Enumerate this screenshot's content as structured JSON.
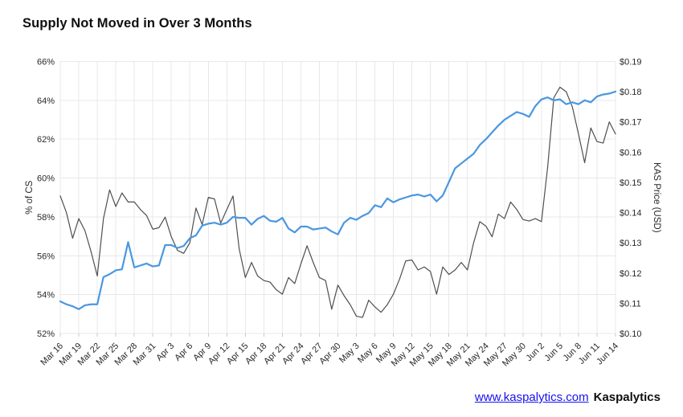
{
  "page": {
    "background": "#ffffff"
  },
  "header": {
    "title": "Supply Not Moved in Over 3 Months"
  },
  "footer": {
    "link_text": "www.kaspalytics.com",
    "brand": "Kaspalytics"
  },
  "colors": {
    "supply_line": "#4a97e0",
    "price_line": "#4f4f52",
    "grid": "#e8e8ec",
    "tick_stub": "#c8c8cc",
    "axis_text": "#26282b",
    "title_text": "#0e0f11",
    "link_blue": "#1512ee",
    "background": "#ffffff"
  },
  "chart_data": {
    "type": "line",
    "title": "Supply Not Moved in Over 3 Months",
    "legend": "none",
    "grid": true,
    "x": {
      "tick_every_days": 3,
      "tick_labels": [
        "Mar 16",
        "Mar 19",
        "Mar 22",
        "Mar 25",
        "Mar 28",
        "Mar 31",
        "Apr 3",
        "Apr 6",
        "Apr 9",
        "Apr 12",
        "Apr 15",
        "Apr 18",
        "Apr 21",
        "Apr 24",
        "Apr 27",
        "Apr 30",
        "May 3",
        "May 6",
        "May 9",
        "May 12",
        "May 15",
        "May 18",
        "May 21",
        "May 24",
        "May 27",
        "May 30",
        "Jun 2",
        "Jun 5",
        "Jun 8",
        "Jun 11",
        "Jun 14"
      ],
      "dates": [
        "Mar 16",
        "Mar 17",
        "Mar 18",
        "Mar 19",
        "Mar 20",
        "Mar 21",
        "Mar 22",
        "Mar 23",
        "Mar 24",
        "Mar 25",
        "Mar 26",
        "Mar 27",
        "Mar 28",
        "Mar 29",
        "Mar 30",
        "Mar 31",
        "Apr 1",
        "Apr 2",
        "Apr 3",
        "Apr 4",
        "Apr 5",
        "Apr 6",
        "Apr 7",
        "Apr 8",
        "Apr 9",
        "Apr 10",
        "Apr 11",
        "Apr 12",
        "Apr 13",
        "Apr 14",
        "Apr 15",
        "Apr 16",
        "Apr 17",
        "Apr 18",
        "Apr 19",
        "Apr 20",
        "Apr 21",
        "Apr 22",
        "Apr 23",
        "Apr 24",
        "Apr 25",
        "Apr 26",
        "Apr 27",
        "Apr 28",
        "Apr 29",
        "Apr 30",
        "May 1",
        "May 2",
        "May 3",
        "May 4",
        "May 5",
        "May 6",
        "May 7",
        "May 8",
        "May 9",
        "May 10",
        "May 11",
        "May 12",
        "May 13",
        "May 14",
        "May 15",
        "May 16",
        "May 17",
        "May 18",
        "May 19",
        "May 20",
        "May 21",
        "May 22",
        "May 23",
        "May 24",
        "May 25",
        "May 26",
        "May 27",
        "May 28",
        "May 29",
        "May 30",
        "May 31",
        "Jun 1",
        "Jun 2",
        "Jun 3",
        "Jun 4",
        "Jun 5",
        "Jun 6",
        "Jun 7",
        "Jun 8",
        "Jun 9",
        "Jun 10",
        "Jun 11",
        "Jun 12",
        "Jun 13",
        "Jun 14"
      ]
    },
    "left_axis": {
      "label": "% of CS",
      "unit": "%",
      "range": [
        52,
        66
      ],
      "tick_step": 2,
      "tick_labels": [
        "66%",
        "64%",
        "62%",
        "60%",
        "58%",
        "56%",
        "54%",
        "52%"
      ]
    },
    "right_axis": {
      "label": "KAS Price (USD)",
      "unit": "USD",
      "range": [
        0.1,
        0.19
      ],
      "tick_step": 0.01,
      "tick_labels": [
        "$0.19",
        "$0.18",
        "$0.17",
        "$0.16",
        "$0.15",
        "$0.14",
        "$0.13",
        "$0.12",
        "$0.11",
        "$0.10"
      ]
    },
    "series": [
      {
        "name": "Supply Not Moved in Over 3 Months (% of CS)",
        "axis": "left",
        "color": "#4a97e0",
        "stroke_width": 2.2,
        "values": [
          53.65,
          53.5,
          53.4,
          53.25,
          53.45,
          53.5,
          53.5,
          54.9,
          55.05,
          55.25,
          55.3,
          56.7,
          55.4,
          55.5,
          55.6,
          55.45,
          55.5,
          56.55,
          56.55,
          56.4,
          56.5,
          56.9,
          57.05,
          57.55,
          57.65,
          57.7,
          57.6,
          57.7,
          58.0,
          57.95,
          57.95,
          57.6,
          57.9,
          58.05,
          57.8,
          57.75,
          57.95,
          57.4,
          57.2,
          57.5,
          57.5,
          57.35,
          57.4,
          57.45,
          57.25,
          57.1,
          57.7,
          57.95,
          57.85,
          58.05,
          58.2,
          58.6,
          58.5,
          58.95,
          58.75,
          58.9,
          59.0,
          59.1,
          59.15,
          59.05,
          59.15,
          58.8,
          59.1,
          59.8,
          60.5,
          60.75,
          61.0,
          61.25,
          61.7,
          62.0,
          62.35,
          62.7,
          63.0,
          63.2,
          63.4,
          63.3,
          63.15,
          63.7,
          64.05,
          64.15,
          64.0,
          64.05,
          63.8,
          63.9,
          63.8,
          64.0,
          63.9,
          64.2,
          64.3,
          64.35,
          64.45
        ]
      },
      {
        "name": "KAS Price (USD)",
        "axis": "right",
        "color": "#4f4f52",
        "stroke_width": 1.2,
        "values": [
          0.1455,
          0.14,
          0.1315,
          0.138,
          0.134,
          0.127,
          0.119,
          0.138,
          0.1475,
          0.142,
          0.1465,
          0.1435,
          0.1435,
          0.141,
          0.139,
          0.1345,
          0.135,
          0.1385,
          0.132,
          0.1275,
          0.1265,
          0.13,
          0.1415,
          0.136,
          0.145,
          0.1445,
          0.1365,
          0.141,
          0.1455,
          0.128,
          0.1185,
          0.1235,
          0.119,
          0.1175,
          0.117,
          0.1145,
          0.113,
          0.1185,
          0.1165,
          0.123,
          0.129,
          0.1235,
          0.1185,
          0.1175,
          0.108,
          0.116,
          0.1125,
          0.1095,
          0.1057,
          0.1053,
          0.111,
          0.1088,
          0.107,
          0.1095,
          0.113,
          0.118,
          0.124,
          0.1243,
          0.121,
          0.122,
          0.1205,
          0.113,
          0.122,
          0.1195,
          0.121,
          0.1235,
          0.121,
          0.13,
          0.137,
          0.1355,
          0.132,
          0.1395,
          0.138,
          0.1435,
          0.141,
          0.1377,
          0.1372,
          0.138,
          0.137,
          0.155,
          0.178,
          0.1815,
          0.18,
          0.175,
          0.166,
          0.1565,
          0.168,
          0.1635,
          0.163,
          0.17,
          0.166
        ]
      }
    ]
  }
}
